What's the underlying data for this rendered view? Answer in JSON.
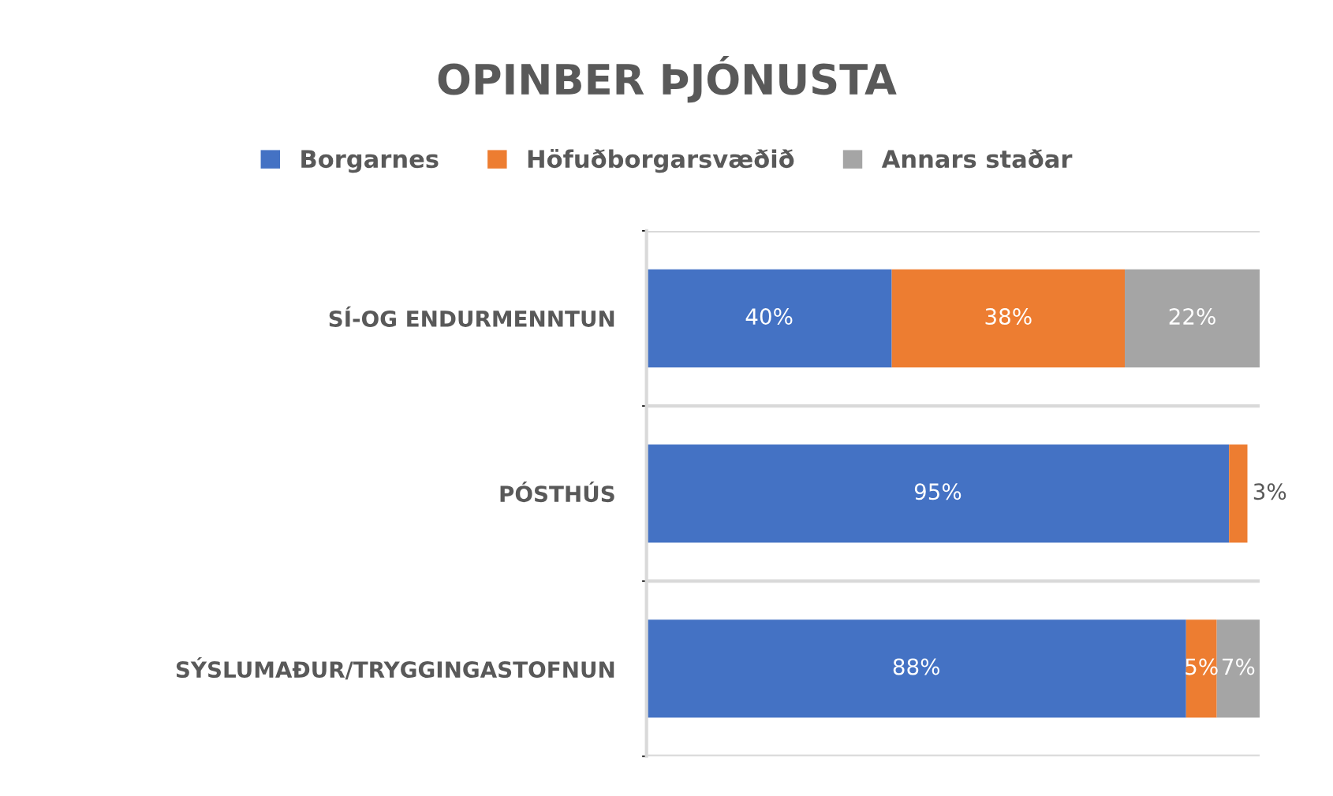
{
  "chart_data": {
    "type": "bar",
    "orientation": "horizontal",
    "stacked": true,
    "title": "OPINBER ÞJÓNUSTA",
    "categories": [
      "SÍ-OG ENDURMENNTUN",
      "PÓSTHÚS",
      "SÝSLUMAÐUR/TRYGGINGASTOFNUN"
    ],
    "series": [
      {
        "name": "Borgarnes",
        "color": "#4472c4",
        "values": [
          40,
          95,
          88
        ],
        "value_labels": [
          "40%",
          "95%",
          "88%"
        ]
      },
      {
        "name": "Höfuðborgarsvæðið",
        "color": "#ed7d31",
        "values": [
          38,
          3,
          5
        ],
        "value_labels": [
          "38%",
          "3%",
          "5%"
        ]
      },
      {
        "name": "Annars staðar",
        "color": "#a5a5a5",
        "values": [
          22,
          null,
          7
        ],
        "value_labels": [
          "22%",
          null,
          "7%"
        ]
      }
    ],
    "tick_labels": "y",
    "grid": "y",
    "legend": "top"
  }
}
